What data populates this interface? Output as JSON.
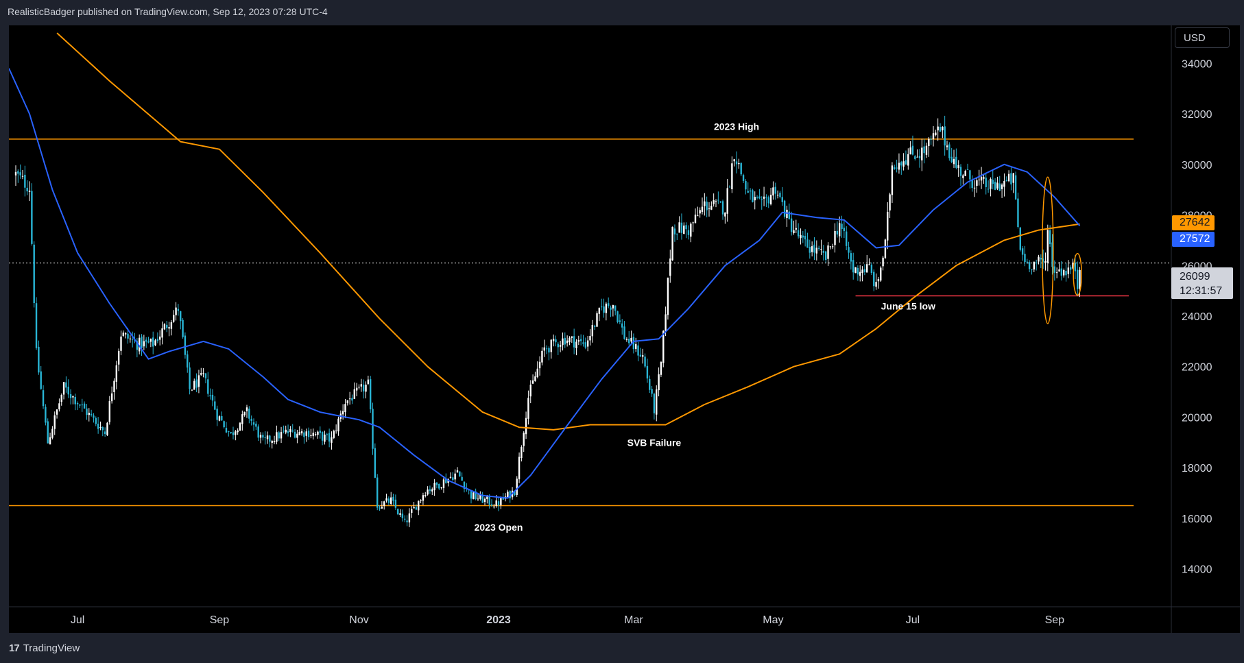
{
  "header": {
    "attribution": "RealisticBadger published on TradingView.com, Sep 12, 2023 07:28 UTC-4"
  },
  "footer": {
    "brand": "TradingView",
    "logo_text": "17"
  },
  "toolbar": {
    "currency": "USD"
  },
  "colors": {
    "background": "#000000",
    "frame": "#1e222d",
    "candle_up": "#ffffff",
    "candle_down": "#29b6d6",
    "ma_fast": "#2962ff",
    "ma_slow": "#ff9800",
    "level_line": "#ff9800",
    "support_line": "#f23645",
    "axis_text": "#d1d4dc"
  },
  "price_tags": {
    "ma_slow_value": "27642",
    "ma_fast_value": "27572",
    "last_price": "26099",
    "countdown": "12:31:57"
  },
  "chart_data": {
    "type": "candlestick",
    "symbol_currency": "USD",
    "ylim": [
      12500,
      35500
    ],
    "y_ticks": [
      14000,
      16000,
      18000,
      20000,
      22000,
      24000,
      26000,
      28000,
      30000,
      32000,
      34000
    ],
    "x_ticks": [
      {
        "label": "Jul",
        "date": "2022-07-01"
      },
      {
        "label": "Sep",
        "date": "2022-09-01"
      },
      {
        "label": "Nov",
        "date": "2022-11-01"
      },
      {
        "label": "2023",
        "date": "2023-01-01"
      },
      {
        "label": "Mar",
        "date": "2023-03-01"
      },
      {
        "label": "May",
        "date": "2023-05-01"
      },
      {
        "label": "Jul",
        "date": "2023-07-01"
      },
      {
        "label": "Sep",
        "date": "2023-09-01"
      }
    ],
    "close_path": [
      [
        "2022-06-04",
        29600
      ],
      [
        "2022-06-10",
        29100
      ],
      [
        "2022-06-13",
        22500
      ],
      [
        "2022-06-18",
        19000
      ],
      [
        "2022-06-25",
        21200
      ],
      [
        "2022-07-05",
        20200
      ],
      [
        "2022-07-13",
        19400
      ],
      [
        "2022-07-20",
        23300
      ],
      [
        "2022-07-27",
        22900
      ],
      [
        "2022-08-03",
        22900
      ],
      [
        "2022-08-14",
        24300
      ],
      [
        "2022-08-19",
        21100
      ],
      [
        "2022-08-25",
        21600
      ],
      [
        "2022-08-31",
        20100
      ],
      [
        "2022-09-06",
        19300
      ],
      [
        "2022-09-13",
        20200
      ],
      [
        "2022-09-20",
        19000
      ],
      [
        "2022-09-30",
        19400
      ],
      [
        "2022-10-10",
        19400
      ],
      [
        "2022-10-20",
        19100
      ],
      [
        "2022-10-26",
        20600
      ],
      [
        "2022-11-05",
        21300
      ],
      [
        "2022-11-09",
        16500
      ],
      [
        "2022-11-15",
        16700
      ],
      [
        "2022-11-21",
        15800
      ],
      [
        "2022-11-30",
        17100
      ],
      [
        "2022-12-05",
        17300
      ],
      [
        "2022-12-14",
        17800
      ],
      [
        "2022-12-20",
        16900
      ],
      [
        "2022-12-31",
        16550
      ],
      [
        "2023-01-08",
        17100
      ],
      [
        "2023-01-14",
        20800
      ],
      [
        "2023-01-21",
        22700
      ],
      [
        "2023-01-30",
        23100
      ],
      [
        "2023-02-08",
        22900
      ],
      [
        "2023-02-15",
        24300
      ],
      [
        "2023-02-20",
        24500
      ],
      [
        "2023-02-25",
        23200
      ],
      [
        "2023-03-05",
        22400
      ],
      [
        "2023-03-10",
        20300
      ],
      [
        "2023-03-13",
        22100
      ],
      [
        "2023-03-18",
        27500
      ],
      [
        "2023-03-25",
        27400
      ],
      [
        "2023-04-01",
        28400
      ],
      [
        "2023-04-10",
        28300
      ],
      [
        "2023-04-14",
        30500
      ],
      [
        "2023-04-20",
        28800
      ],
      [
        "2023-04-26",
        28300
      ],
      [
        "2023-05-02",
        29100
      ],
      [
        "2023-05-08",
        27700
      ],
      [
        "2023-05-14",
        26900
      ],
      [
        "2023-05-24",
        26300
      ],
      [
        "2023-05-30",
        27700
      ],
      [
        "2023-06-05",
        25800
      ],
      [
        "2023-06-12",
        25900
      ],
      [
        "2023-06-15",
        25100
      ],
      [
        "2023-06-19",
        26800
      ],
      [
        "2023-06-22",
        30000
      ],
      [
        "2023-06-30",
        30400
      ],
      [
        "2023-07-06",
        30500
      ],
      [
        "2023-07-13",
        31400
      ],
      [
        "2023-07-20",
        29900
      ],
      [
        "2023-07-28",
        29300
      ],
      [
        "2023-08-05",
        29100
      ],
      [
        "2023-08-14",
        29400
      ],
      [
        "2023-08-17",
        26600
      ],
      [
        "2023-08-20",
        26100
      ],
      [
        "2023-08-28",
        26100
      ],
      [
        "2023-08-29",
        27700
      ],
      [
        "2023-08-31",
        25900
      ],
      [
        "2023-09-05",
        25800
      ],
      [
        "2023-09-10",
        25900
      ],
      [
        "2023-09-11",
        25200
      ],
      [
        "2023-09-12",
        26099
      ]
    ],
    "series": [
      {
        "type": "line",
        "points": [
          [
            "2022-06-01",
            33800
          ],
          [
            "2022-06-10",
            32000
          ],
          [
            "2022-06-20",
            29000
          ],
          [
            "2022-07-01",
            26500
          ],
          [
            "2022-07-15",
            24500
          ],
          [
            "2022-08-01",
            22300
          ],
          [
            "2022-08-10",
            22600
          ],
          [
            "2022-08-25",
            23000
          ],
          [
            "2022-09-05",
            22700
          ],
          [
            "2022-09-20",
            21600
          ],
          [
            "2022-10-01",
            20700
          ],
          [
            "2022-10-15",
            20200
          ],
          [
            "2022-11-01",
            19900
          ],
          [
            "2022-11-10",
            19600
          ],
          [
            "2022-11-25",
            18500
          ],
          [
            "2022-12-10",
            17500
          ],
          [
            "2022-12-25",
            16900
          ],
          [
            "2023-01-05",
            16800
          ],
          [
            "2023-01-15",
            17700
          ],
          [
            "2023-02-01",
            19800
          ],
          [
            "2023-02-15",
            21500
          ],
          [
            "2023-03-01",
            23000
          ],
          [
            "2023-03-12",
            23100
          ],
          [
            "2023-03-25",
            24300
          ],
          [
            "2023-04-10",
            26000
          ],
          [
            "2023-04-25",
            27000
          ],
          [
            "2023-05-05",
            28100
          ],
          [
            "2023-05-20",
            27900
          ],
          [
            "2023-06-01",
            27800
          ],
          [
            "2023-06-15",
            26700
          ],
          [
            "2023-06-25",
            26800
          ],
          [
            "2023-07-10",
            28200
          ],
          [
            "2023-07-25",
            29300
          ],
          [
            "2023-08-10",
            30000
          ],
          [
            "2023-08-20",
            29700
          ],
          [
            "2023-09-01",
            28700
          ],
          [
            "2023-09-12",
            27572
          ]
        ]
      },
      {
        "type": "line",
        "points": [
          [
            "2022-06-22",
            35200
          ],
          [
            "2022-07-15",
            33300
          ],
          [
            "2022-08-15",
            30900
          ],
          [
            "2022-09-01",
            30600
          ],
          [
            "2022-09-20",
            28900
          ],
          [
            "2022-10-15",
            26500
          ],
          [
            "2022-11-10",
            23900
          ],
          [
            "2022-12-01",
            22000
          ],
          [
            "2022-12-25",
            20200
          ],
          [
            "2023-01-10",
            19600
          ],
          [
            "2023-01-25",
            19500
          ],
          [
            "2023-02-10",
            19700
          ],
          [
            "2023-03-01",
            19700
          ],
          [
            "2023-03-15",
            19700
          ],
          [
            "2023-04-01",
            20500
          ],
          [
            "2023-04-20",
            21200
          ],
          [
            "2023-05-10",
            22000
          ],
          [
            "2023-05-30",
            22500
          ],
          [
            "2023-06-15",
            23500
          ],
          [
            "2023-07-01",
            24700
          ],
          [
            "2023-07-20",
            26000
          ],
          [
            "2023-08-10",
            27000
          ],
          [
            "2023-08-25",
            27400
          ],
          [
            "2023-09-12",
            27642
          ]
        ]
      }
    ],
    "horizontal_levels": [
      31000,
      16500,
      24800
    ],
    "annotations": [
      {
        "text": "2023 High",
        "date": "2023-04-15",
        "price": 31500
      },
      {
        "text": "SVB Failure",
        "date": "2023-03-10",
        "price": 19000
      },
      {
        "text": "2023 Open",
        "date": "2023-01-01",
        "price": 15650
      },
      {
        "text": "June 15 low",
        "date": "2023-06-29",
        "price": 24400
      }
    ]
  }
}
